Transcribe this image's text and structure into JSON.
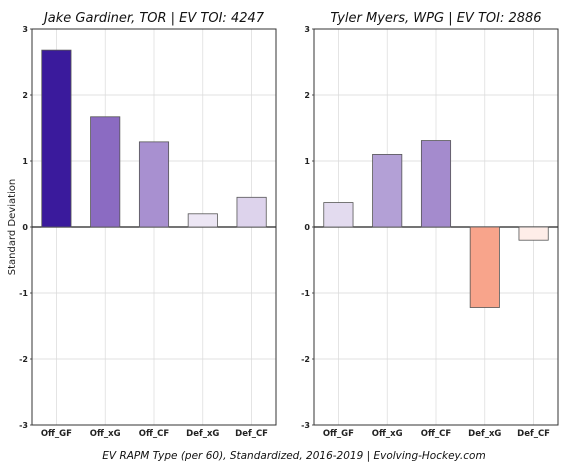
{
  "chart_data": [
    {
      "type": "bar",
      "title": "Jake Gardiner, TOR  |  EV TOI: 4247",
      "ylabel": "Standard Deviation",
      "ylim": [
        -3,
        3
      ],
      "yticks": [
        -3,
        -2,
        -1,
        0,
        1,
        2,
        3
      ],
      "grid": true,
      "categories": [
        "Off_GF",
        "Off_xG",
        "Off_CF",
        "Def_xG",
        "Def_CF"
      ],
      "values": [
        2.68,
        1.67,
        1.29,
        0.2,
        0.45
      ],
      "colors": [
        "#3a1a9c",
        "#8b6bc2",
        "#a890d0",
        "#ece6f4",
        "#ddd3ec"
      ]
    },
    {
      "type": "bar",
      "title": "Tyler Myers, WPG  |  EV TOI: 2886",
      "ylabel": "",
      "ylim": [
        -3,
        3
      ],
      "yticks": [
        -3,
        -2,
        -1,
        0,
        1,
        2,
        3
      ],
      "grid": true,
      "categories": [
        "Off_GF",
        "Off_xG",
        "Off_CF",
        "Def_xG",
        "Def_CF"
      ],
      "values": [
        0.37,
        1.1,
        1.31,
        -1.22,
        -0.2
      ],
      "colors": [
        "#e3dbef",
        "#b3a0d6",
        "#a48bcd",
        "#f8a48b",
        "#feede8"
      ]
    }
  ],
  "footer": "EV RAPM Type (per 60), Standardized, 2016-2019    |    Evolving-Hockey.com"
}
